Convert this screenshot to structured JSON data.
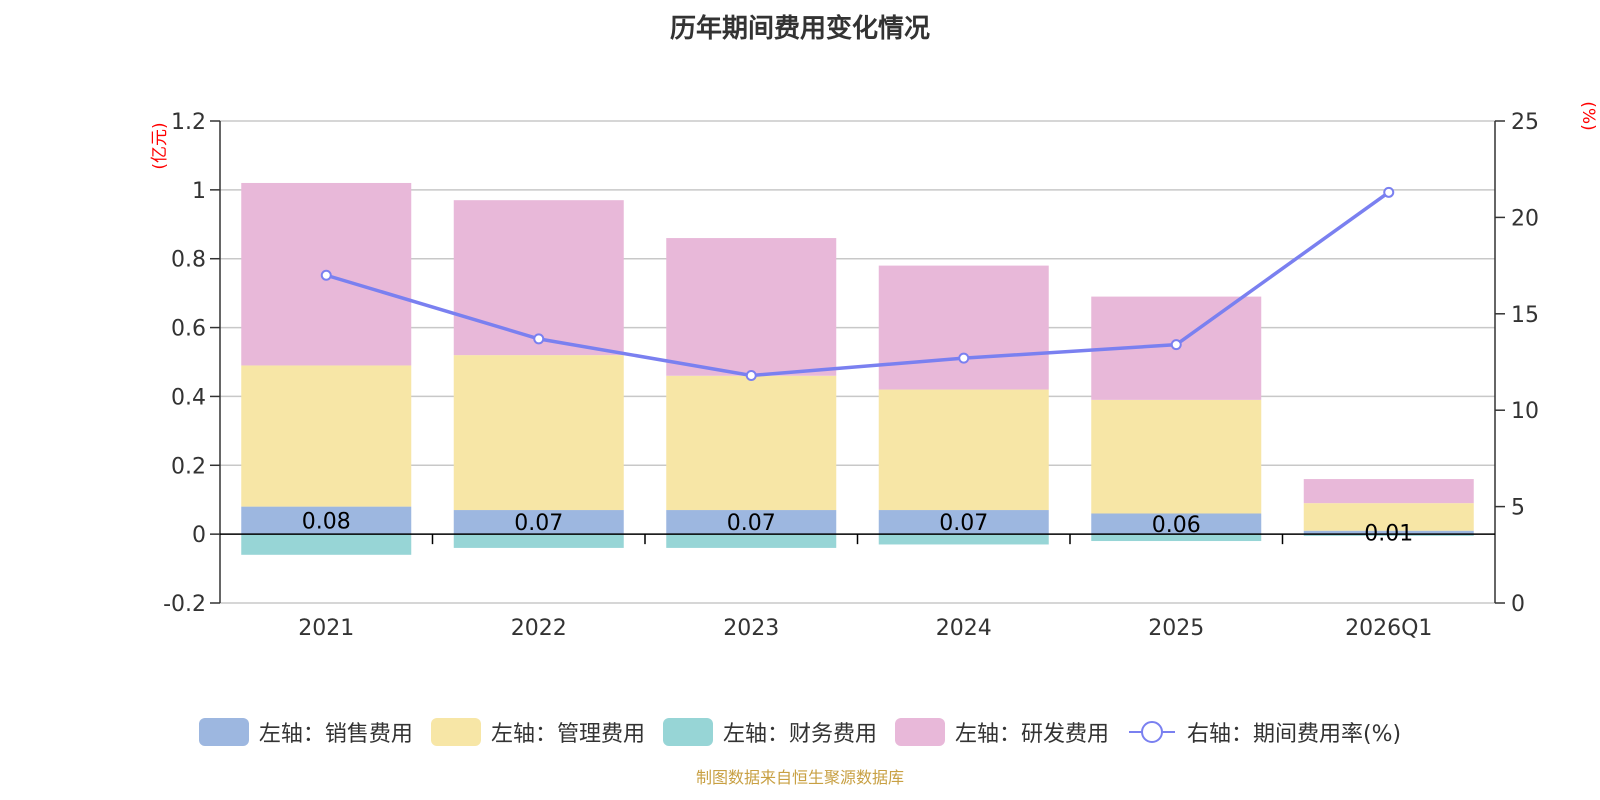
{
  "title": "历年期间费用变化情况",
  "source": "制图数据来自恒生聚源数据库",
  "colors": {
    "sales": "#9db7e0",
    "admin": "#f7e6a6",
    "finance": "#97d5d6",
    "rd": "#e8b8d9",
    "rate": "#7a80f0",
    "axis_unit": "#ff0000",
    "grid": "#c8c8c8",
    "text": "#333333"
  },
  "legend": [
    {
      "key": "sales",
      "label": "左轴：销售费用"
    },
    {
      "key": "admin",
      "label": "左轴：管理费用"
    },
    {
      "key": "finance",
      "label": "左轴：财务费用"
    },
    {
      "key": "rd",
      "label": "左轴：研发费用"
    },
    {
      "key": "rate",
      "label": "右轴：期间费用率(%)"
    }
  ],
  "chart_data": {
    "type": "bar",
    "title": "历年期间费用变化情况",
    "categories": [
      "2021",
      "2022",
      "2023",
      "2024",
      "2025",
      "2026Q1"
    ],
    "series": [
      {
        "key": "sales",
        "name": "左轴：销售费用",
        "axis": "left",
        "values": [
          0.08,
          0.07,
          0.07,
          0.07,
          0.06,
          0.01
        ]
      },
      {
        "key": "admin",
        "name": "左轴：管理费用",
        "axis": "left",
        "values": [
          0.41,
          0.45,
          0.39,
          0.35,
          0.33,
          0.08
        ]
      },
      {
        "key": "finance",
        "name": "左轴：财务费用",
        "axis": "left",
        "values": [
          -0.06,
          -0.04,
          -0.04,
          -0.03,
          -0.02,
          -0.005
        ]
      },
      {
        "key": "rd",
        "name": "左轴：研发费用",
        "axis": "left",
        "values": [
          0.53,
          0.45,
          0.4,
          0.36,
          0.3,
          0.07
        ]
      },
      {
        "key": "rate",
        "name": "右轴：期间费用率(%)",
        "axis": "right",
        "type": "line",
        "values": [
          17.0,
          13.7,
          11.8,
          12.7,
          13.4,
          21.3
        ]
      }
    ],
    "bar_labels": [
      "0.08",
      "0.07",
      "0.07",
      "0.07",
      "0.06",
      "0.01"
    ],
    "left_axis": {
      "unit": "(亿元)",
      "ylim": [
        -0.2,
        1.2
      ],
      "ticks": [
        -0.2,
        0,
        0.2,
        0.4,
        0.6,
        0.8,
        1,
        1.2
      ],
      "tick_labels": [
        "-0.2",
        "0",
        "0.2",
        "0.4",
        "0.6",
        "0.8",
        "1",
        "1.2"
      ]
    },
    "right_axis": {
      "unit": "(%)",
      "ylim": [
        0,
        25
      ],
      "ticks": [
        0,
        5,
        10,
        15,
        20,
        25
      ],
      "tick_labels": [
        "0",
        "5",
        "10",
        "15",
        "20",
        "25"
      ]
    },
    "grid": true,
    "legend_position": "bottom"
  }
}
